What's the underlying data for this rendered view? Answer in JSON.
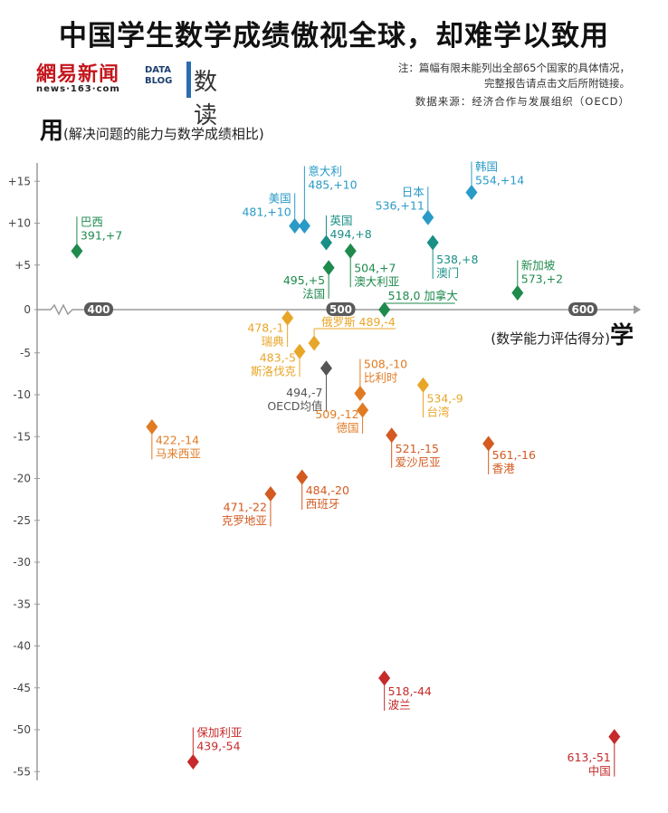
{
  "title": "中国学生数学成绩傲视全球，却难学以致用",
  "brand": {
    "logo_163": "網易新闻",
    "domain": "news·163·com",
    "datablog": "DATA BLOG",
    "shudu": "数读"
  },
  "note_line1": "注：篇幅有限未能列出全部65个国家的具体情况，",
  "note_line2": "完整报告请点击文后所附链接。",
  "source": "数据来源：经济合作与发展组织（OECD）",
  "ylabel_big": "用",
  "ylabel_small": "(解决问题的能力与数学成绩相比)",
  "xlabel_small": "(数学能力评估得分)",
  "xlabel_big": "学",
  "colors": {
    "green": "#1e8a4c",
    "blue": "#2a9ac7",
    "teal": "#1a8f86",
    "yellow": "#e8a628",
    "orange": "#e07b24",
    "darkorange": "#d35a20",
    "red": "#c62a2a",
    "gray": "#555555"
  },
  "chart_data": {
    "type": "scatter",
    "title": "中国学生数学成绩傲视全球，却难学以致用",
    "xlabel": "(数学能力评估得分)学",
    "ylabel": "用(解决问题的能力与数学成绩相比)",
    "xlim": [
      340,
      630
    ],
    "ylim": [
      -56,
      19
    ],
    "xticks": [
      400,
      500,
      600
    ],
    "yticks": [
      15,
      10,
      5,
      0,
      -5,
      -10,
      -15,
      -20,
      -25,
      -30,
      -35,
      -40,
      -45,
      -50,
      -55
    ],
    "ytick_labels": [
      "+15",
      "+10",
      "+5",
      "0",
      "-5",
      "-10",
      "-15",
      "-20",
      "-25",
      "-30",
      "-35",
      "-40",
      "-45",
      "-50",
      "-55"
    ],
    "points": [
      {
        "name": "巴西",
        "value": "391,+7",
        "x": 391,
        "y": 7,
        "color": "green"
      },
      {
        "name": "美国",
        "value": "481,+10",
        "x": 481,
        "y": 10,
        "color": "blue"
      },
      {
        "name": "意大利",
        "value": "485,+10",
        "x": 485,
        "y": 10,
        "color": "blue"
      },
      {
        "name": "英国",
        "value": "494,+8",
        "x": 494,
        "y": 8,
        "color": "teal"
      },
      {
        "name": "法国",
        "value": "495,+5",
        "x": 495,
        "y": 5,
        "color": "green"
      },
      {
        "name": "澳大利亚",
        "value": "504,+7",
        "x": 504,
        "y": 7,
        "color": "green"
      },
      {
        "name": "日本",
        "value": "536,+11",
        "x": 536,
        "y": 11,
        "color": "blue"
      },
      {
        "name": "澳门",
        "value": "538,+8",
        "x": 538,
        "y": 8,
        "color": "teal"
      },
      {
        "name": "韩国",
        "value": "554,+14",
        "x": 554,
        "y": 14,
        "color": "blue"
      },
      {
        "name": "新加坡",
        "value": "573,+2",
        "x": 573,
        "y": 2,
        "color": "green"
      },
      {
        "name": "加拿大",
        "value": "518,0",
        "x": 518,
        "y": 0,
        "color": "green"
      },
      {
        "name": "瑞典",
        "value": "478,-1",
        "x": 478,
        "y": -1,
        "color": "yellow"
      },
      {
        "name": "俄罗斯",
        "value": "489,-4",
        "x": 489,
        "y": -4,
        "color": "yellow"
      },
      {
        "name": "斯洛伐克",
        "value": "483,-5",
        "x": 483,
        "y": -5,
        "color": "yellow"
      },
      {
        "name": "OECD均值",
        "value": "494,-7",
        "x": 494,
        "y": -7,
        "color": "gray"
      },
      {
        "name": "比利时",
        "value": "508,-10",
        "x": 508,
        "y": -10,
        "color": "orange"
      },
      {
        "name": "德国",
        "value": "509,-12",
        "x": 509,
        "y": -12,
        "color": "orange"
      },
      {
        "name": "台湾",
        "value": "534,-9",
        "x": 534,
        "y": -9,
        "color": "yellow"
      },
      {
        "name": "马来西亚",
        "value": "422,-14",
        "x": 422,
        "y": -14,
        "color": "orange"
      },
      {
        "name": "爱沙尼亚",
        "value": "521,-15",
        "x": 521,
        "y": -15,
        "color": "darkorange"
      },
      {
        "name": "香港",
        "value": "561,-16",
        "x": 561,
        "y": -16,
        "color": "darkorange"
      },
      {
        "name": "西班牙",
        "value": "484,-20",
        "x": 484,
        "y": -20,
        "color": "darkorange"
      },
      {
        "name": "克罗地亚",
        "value": "471,-22",
        "x": 471,
        "y": -22,
        "color": "darkorange"
      },
      {
        "name": "波兰",
        "value": "518,-44",
        "x": 518,
        "y": -44,
        "color": "red"
      },
      {
        "name": "保加利亚",
        "value": "439,-54",
        "x": 439,
        "y": -54,
        "color": "red"
      },
      {
        "name": "中国",
        "value": "613,-51",
        "x": 613,
        "y": -51,
        "color": "red"
      }
    ]
  }
}
